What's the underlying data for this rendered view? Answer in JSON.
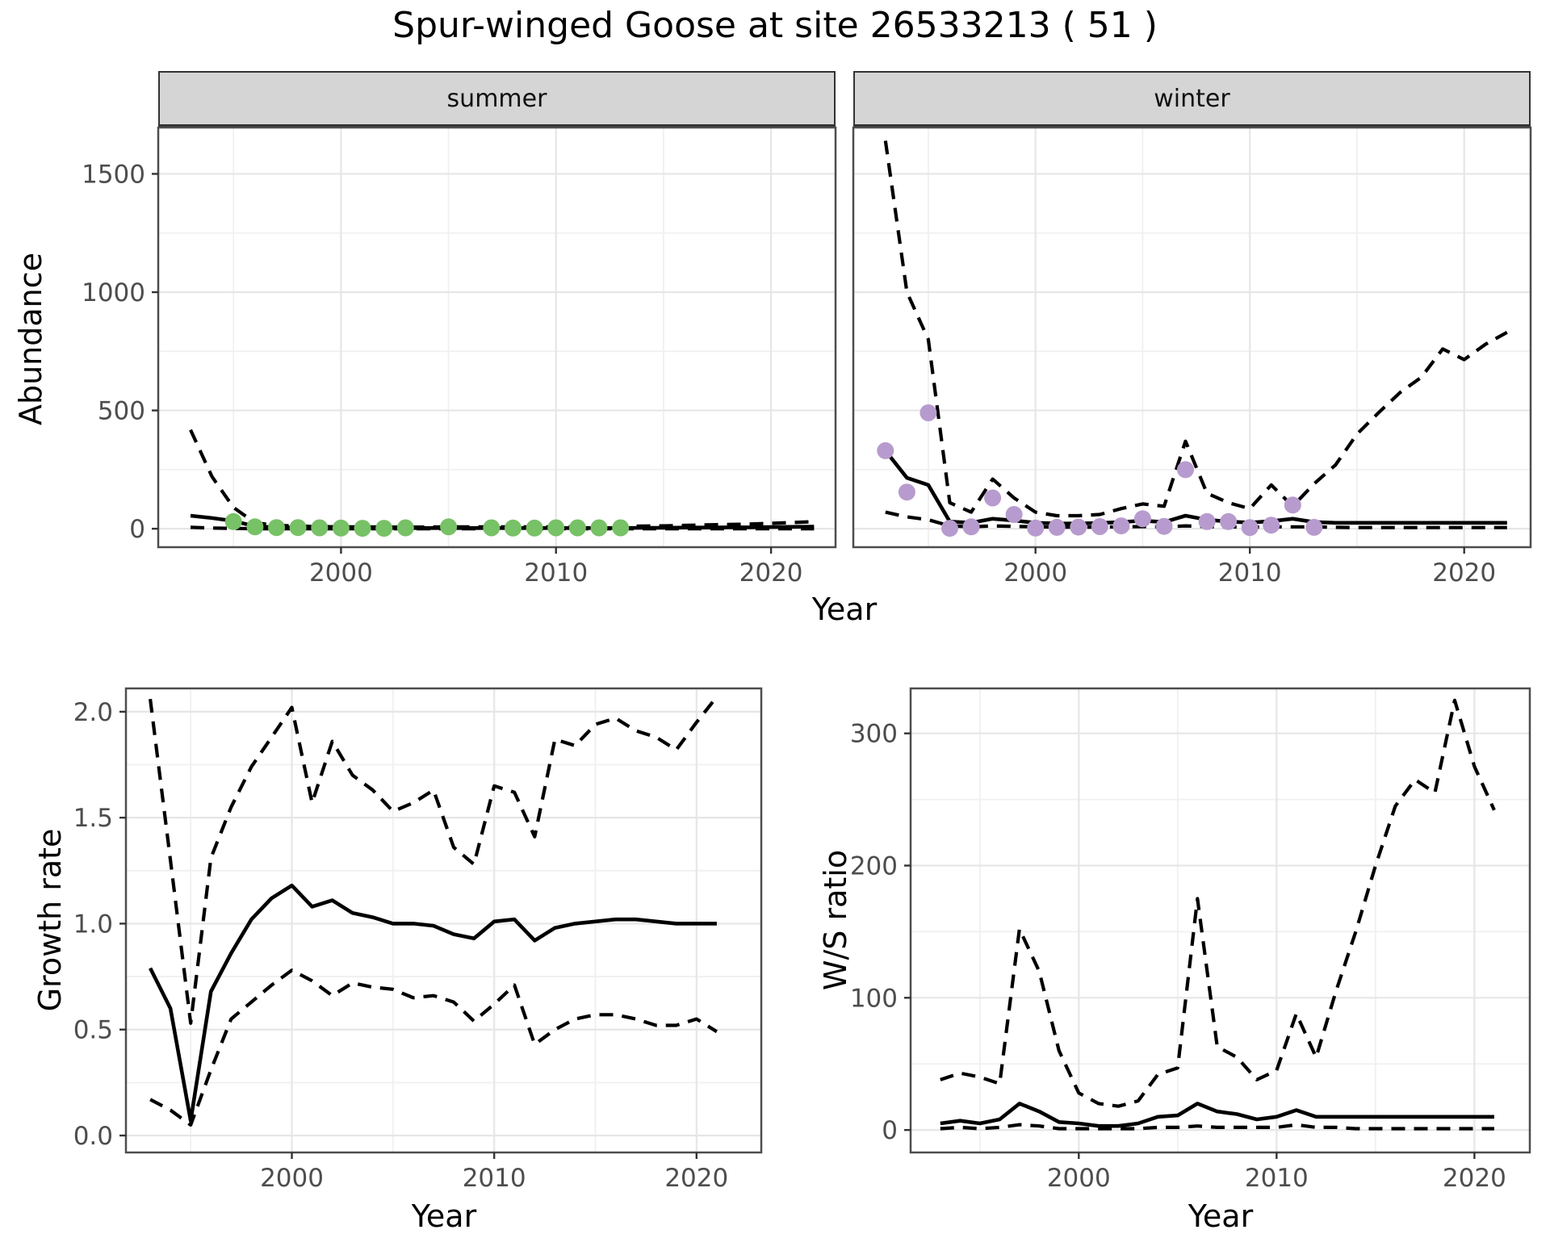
{
  "title": "Spur-winged Goose at site 26533213 ( 51 )",
  "facets": {
    "summer": "summer",
    "winter": "winter"
  },
  "axis_titles": {
    "top_x": "Year",
    "top_y": "Abundance",
    "bottom_left_x": "Year",
    "bottom_left_y": "Growth rate",
    "bottom_right_x": "Year",
    "bottom_right_y": "W/S ratio"
  },
  "colors": {
    "observed_summer": "#77C166",
    "observed_winter": "#B79BCE",
    "line": "#000000",
    "strip_bg": "#D5D5D5",
    "grid_major": "#E6E6E6",
    "grid_minor": "#F0F0F0",
    "panel_border": "#4D4D4D",
    "tick_mark": "#333333",
    "tick_text": "#4D4D4D",
    "text": "#000000"
  },
  "chart_data": [
    {
      "id": "abundance-summer",
      "type": "line",
      "title": "summer",
      "xlabel": "Year",
      "ylabel": "Abundance",
      "x_domain": [
        1991.5,
        2023.0
      ],
      "y_domain": [
        -78,
        1696
      ],
      "x_ticks": [
        2000,
        2010,
        2020
      ],
      "x_tick_labels": [
        "2000",
        "2010",
        "2020"
      ],
      "x_minor": [
        1995,
        2005,
        2015
      ],
      "y_ticks": [
        0,
        500,
        1000,
        1500
      ],
      "y_tick_labels": [
        "0",
        "500",
        "1000",
        "1500"
      ],
      "y_minor": [
        250,
        750,
        1250
      ],
      "show_y_tick_labels": true,
      "grid": true,
      "legend": "none",
      "years": [
        1993,
        1994,
        1995,
        1996,
        1997,
        1998,
        1999,
        2000,
        2001,
        2002,
        2003,
        2004,
        2005,
        2006,
        2007,
        2008,
        2009,
        2010,
        2011,
        2012,
        2013,
        2014,
        2015,
        2016,
        2017,
        2018,
        2019,
        2020,
        2021,
        2022
      ],
      "series": [
        {
          "name": "fitted",
          "style": "solid",
          "values": [
            55,
            45,
            33,
            10,
            6,
            5,
            4,
            4,
            3,
            3,
            3,
            3,
            3,
            3,
            3,
            3,
            3,
            3,
            3,
            3,
            3,
            4,
            4,
            5,
            5,
            6,
            6,
            7,
            8,
            9
          ]
        },
        {
          "name": "upper-ci",
          "style": "dashed",
          "values": [
            418,
            220,
            90,
            25,
            14,
            11,
            9,
            8,
            8,
            7,
            7,
            7,
            8,
            8,
            8,
            8,
            8,
            8,
            9,
            9,
            10,
            11,
            12,
            14,
            16,
            18,
            20,
            23,
            26,
            30
          ]
        },
        {
          "name": "lower-ci",
          "style": "dashed",
          "values": [
            6,
            3,
            1,
            0,
            0,
            0,
            0,
            0,
            0,
            0,
            0,
            0,
            0,
            0,
            0,
            0,
            0,
            0,
            0,
            0,
            0,
            0,
            0,
            0,
            0,
            0,
            0,
            0,
            0,
            0
          ]
        }
      ],
      "points": {
        "name": "observed-count",
        "color_key": "observed_summer",
        "years": [
          1995,
          1996,
          1997,
          1998,
          1999,
          2000,
          2001,
          2002,
          2003,
          2005,
          2007,
          2008,
          2009,
          2010,
          2011,
          2012,
          2013
        ],
        "values": [
          30,
          8,
          5,
          5,
          4,
          3,
          2,
          2,
          4,
          8,
          4,
          3,
          3,
          4,
          4,
          4,
          4
        ]
      }
    },
    {
      "id": "abundance-winter",
      "type": "line",
      "title": "winter",
      "xlabel": "Year",
      "ylabel": "Abundance",
      "x_domain": [
        1991.5,
        2023.1
      ],
      "y_domain": [
        -78,
        1696
      ],
      "x_ticks": [
        2000,
        2010,
        2020
      ],
      "x_tick_labels": [
        "2000",
        "2010",
        "2020"
      ],
      "x_minor": [
        1995,
        2005,
        2015
      ],
      "y_ticks": [
        0,
        500,
        1000,
        1500
      ],
      "y_tick_labels": [
        "0",
        "500",
        "1000",
        "1500"
      ],
      "y_minor": [
        250,
        750,
        1250
      ],
      "show_y_tick_labels": false,
      "grid": true,
      "legend": "none",
      "years": [
        1993,
        1994,
        1995,
        1996,
        1997,
        1998,
        1999,
        2000,
        2001,
        2002,
        2003,
        2004,
        2005,
        2006,
        2007,
        2008,
        2009,
        2010,
        2011,
        2012,
        2013,
        2014,
        2015,
        2016,
        2017,
        2018,
        2019,
        2020,
        2021,
        2022
      ],
      "series": [
        {
          "name": "fitted",
          "style": "solid",
          "values": [
            330,
            215,
            185,
            30,
            25,
            42,
            35,
            25,
            22,
            22,
            24,
            28,
            34,
            28,
            55,
            38,
            30,
            26,
            32,
            42,
            28,
            25,
            25,
            25,
            25,
            25,
            25,
            25,
            25,
            25
          ]
        },
        {
          "name": "upper-ci",
          "style": "dashed",
          "values": [
            1640,
            1000,
            800,
            110,
            70,
            210,
            130,
            70,
            55,
            55,
            60,
            85,
            105,
            95,
            370,
            150,
            110,
            85,
            185,
            95,
            190,
            270,
            400,
            490,
            575,
            640,
            760,
            715,
            780,
            830
          ]
        },
        {
          "name": "lower-ci",
          "style": "dashed",
          "values": [
            70,
            50,
            38,
            12,
            8,
            12,
            10,
            8,
            7,
            7,
            7,
            8,
            9,
            8,
            12,
            9,
            8,
            7,
            8,
            8,
            8,
            6,
            5,
            5,
            5,
            5,
            5,
            5,
            5,
            5
          ]
        }
      ],
      "points": {
        "name": "observed-count",
        "color_key": "observed_winter",
        "years": [
          1993,
          1994,
          1995,
          1996,
          1997,
          1998,
          1999,
          2000,
          2001,
          2002,
          2003,
          2004,
          2005,
          2006,
          2007,
          2008,
          2009,
          2010,
          2011,
          2012,
          2013
        ],
        "values": [
          330,
          155,
          490,
          2,
          8,
          130,
          60,
          3,
          6,
          7,
          9,
          12,
          42,
          10,
          250,
          30,
          30,
          5,
          15,
          100,
          6
        ]
      }
    },
    {
      "id": "growth-rate",
      "type": "line",
      "title": "",
      "xlabel": "Year",
      "ylabel": "Growth rate",
      "x_domain": [
        1991.8,
        2023.2
      ],
      "y_domain": [
        -0.08,
        2.11
      ],
      "x_ticks": [
        2000,
        2010,
        2020
      ],
      "x_tick_labels": [
        "2000",
        "2010",
        "2020"
      ],
      "x_minor": [
        1995,
        2005,
        2015
      ],
      "y_ticks": [
        0.0,
        0.5,
        1.0,
        1.5,
        2.0
      ],
      "y_tick_labels": [
        "0.0",
        "0.5",
        "1.0",
        "1.5",
        "2.0"
      ],
      "y_minor": [
        0.25,
        0.75,
        1.25,
        1.75
      ],
      "show_y_tick_labels": true,
      "grid": true,
      "legend": "none",
      "years": [
        1993,
        1994,
        1995,
        1996,
        1997,
        1998,
        1999,
        2000,
        2001,
        2002,
        2003,
        2004,
        2005,
        2006,
        2007,
        2008,
        2009,
        2010,
        2011,
        2012,
        2013,
        2014,
        2015,
        2016,
        2017,
        2018,
        2019,
        2020,
        2021
      ],
      "series": [
        {
          "name": "fitted",
          "style": "solid",
          "values": [
            0.79,
            0.6,
            0.07,
            0.68,
            0.86,
            1.02,
            1.12,
            1.18,
            1.08,
            1.11,
            1.05,
            1.03,
            1.0,
            1.0,
            0.99,
            0.95,
            0.93,
            1.01,
            1.02,
            0.92,
            0.98,
            1.0,
            1.01,
            1.02,
            1.02,
            1.01,
            1.0,
            1.0,
            1.0
          ]
        },
        {
          "name": "upper-ci",
          "style": "dashed",
          "values": [
            2.06,
            1.3,
            0.53,
            1.31,
            1.55,
            1.74,
            1.88,
            2.02,
            1.57,
            1.86,
            1.7,
            1.63,
            1.53,
            1.57,
            1.63,
            1.36,
            1.28,
            1.65,
            1.62,
            1.41,
            1.87,
            1.84,
            1.94,
            1.97,
            1.91,
            1.88,
            1.82,
            1.95,
            2.07
          ]
        },
        {
          "name": "lower-ci",
          "style": "dashed",
          "values": [
            0.17,
            0.12,
            0.05,
            0.31,
            0.55,
            0.63,
            0.71,
            0.78,
            0.73,
            0.66,
            0.72,
            0.7,
            0.69,
            0.65,
            0.66,
            0.63,
            0.54,
            0.62,
            0.71,
            0.43,
            0.5,
            0.55,
            0.57,
            0.57,
            0.55,
            0.52,
            0.52,
            0.55,
            0.49
          ]
        }
      ],
      "points": null
    },
    {
      "id": "ws-ratio",
      "type": "line",
      "title": "",
      "xlabel": "Year",
      "ylabel": "W/S ratio",
      "x_domain": [
        1991.5,
        2022.8
      ],
      "y_domain": [
        -17,
        334
      ],
      "x_ticks": [
        2000,
        2010,
        2020
      ],
      "x_tick_labels": [
        "2000",
        "2010",
        "2020"
      ],
      "x_minor": [
        1995,
        2005,
        2015
      ],
      "y_ticks": [
        0,
        100,
        200,
        300
      ],
      "y_tick_labels": [
        "0",
        "100",
        "200",
        "300"
      ],
      "y_minor": [
        50,
        150,
        250
      ],
      "show_y_tick_labels": true,
      "grid": true,
      "legend": "none",
      "years": [
        1993,
        1994,
        1995,
        1996,
        1997,
        1998,
        1999,
        2000,
        2001,
        2002,
        2003,
        2004,
        2005,
        2006,
        2007,
        2008,
        2009,
        2010,
        2011,
        2012,
        2013,
        2014,
        2015,
        2016,
        2017,
        2018,
        2019,
        2020,
        2021
      ],
      "series": [
        {
          "name": "fitted",
          "style": "solid",
          "values": [
            5,
            7,
            5,
            8,
            20,
            14,
            6,
            5,
            3,
            3,
            5,
            10,
            11,
            20,
            14,
            12,
            8,
            10,
            15,
            10,
            10,
            10,
            10,
            10,
            10,
            10,
            10,
            10,
            10
          ]
        },
        {
          "name": "upper-ci",
          "style": "dashed",
          "values": [
            38,
            43,
            40,
            35,
            152,
            120,
            60,
            28,
            20,
            18,
            22,
            42,
            47,
            175,
            63,
            55,
            38,
            45,
            88,
            55,
            105,
            150,
            200,
            245,
            265,
            255,
            325,
            275,
            242
          ]
        },
        {
          "name": "lower-ci",
          "style": "dashed",
          "values": [
            1,
            2,
            1,
            2,
            4,
            3,
            1,
            1,
            1,
            1,
            1,
            2,
            2,
            3,
            2,
            2,
            2,
            2,
            4,
            2,
            2,
            1,
            1,
            1,
            1,
            1,
            1,
            1,
            1
          ]
        }
      ],
      "points": null
    }
  ]
}
